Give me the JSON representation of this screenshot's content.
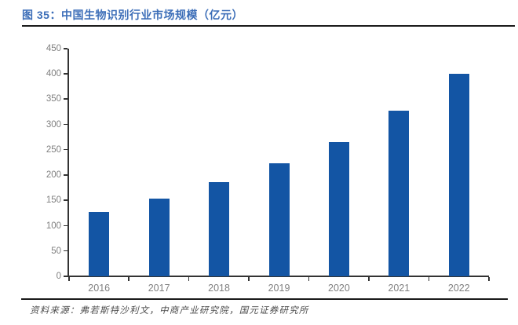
{
  "header": {
    "title": "图 35：中国生物识别行业市场规模（亿元）"
  },
  "footer": {
    "source": "资料来源：弗若斯特沙利文，中商产业研究院，国元证券研究所"
  },
  "colors": {
    "bar": "#1355A4",
    "title": "#3C6EB8",
    "rule": "#1A1A1A",
    "axis": "#333333",
    "tick_label": "#7F7F7F",
    "source_text": "#4D4D4D"
  },
  "chart_data": {
    "type": "bar",
    "title": "中国生物识别行业市场规模（亿元）",
    "categories": [
      "2016",
      "2017",
      "2018",
      "2019",
      "2020",
      "2021",
      "2022"
    ],
    "values": [
      128,
      154,
      186,
      224,
      266,
      327,
      401
    ],
    "xlabel": "",
    "ylabel": "",
    "ylim": [
      0,
      450
    ],
    "yticks": [
      0,
      50,
      100,
      150,
      200,
      250,
      300,
      350,
      400,
      450
    ],
    "grid": false,
    "legend": "none"
  }
}
